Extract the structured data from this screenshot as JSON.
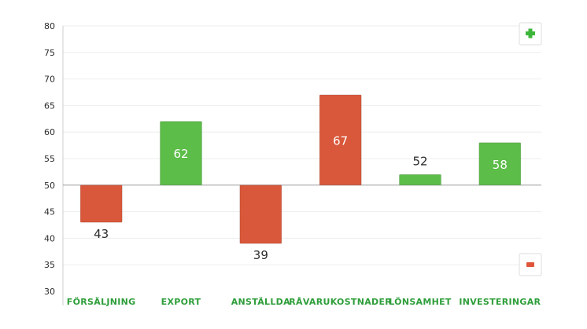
{
  "chart_data": {
    "type": "bar",
    "baseline": 50,
    "categories": [
      "FÖRSÄLJNING",
      "EXPORT",
      "ANSTÄLLDA",
      "RÅVARUKOSTNADER",
      "LÖNSAMHET",
      "INVESTERINGAR"
    ],
    "values": [
      43,
      62,
      39,
      67,
      52,
      58
    ],
    "bar_colors": [
      "#d9573a",
      "#5cbd48",
      "#d9573a",
      "#d9573a",
      "#5cbd48",
      "#5cbd48"
    ],
    "value_label_position": [
      "below",
      "inside",
      "below",
      "inside",
      "above",
      "inside"
    ],
    "ylim": [
      30,
      80
    ],
    "yticks": [
      "80",
      "75",
      "70",
      "65",
      "60",
      "55",
      "50",
      "45",
      "40",
      "35",
      "30"
    ],
    "grid": true,
    "title": "",
    "xlabel": "",
    "ylabel": "",
    "category_label_color": "#2e9e3a"
  },
  "indicators": {
    "plus_symbol": "+",
    "plus_color": "#3db53a",
    "minus_symbol": "−",
    "minus_color": "#e0553a"
  }
}
